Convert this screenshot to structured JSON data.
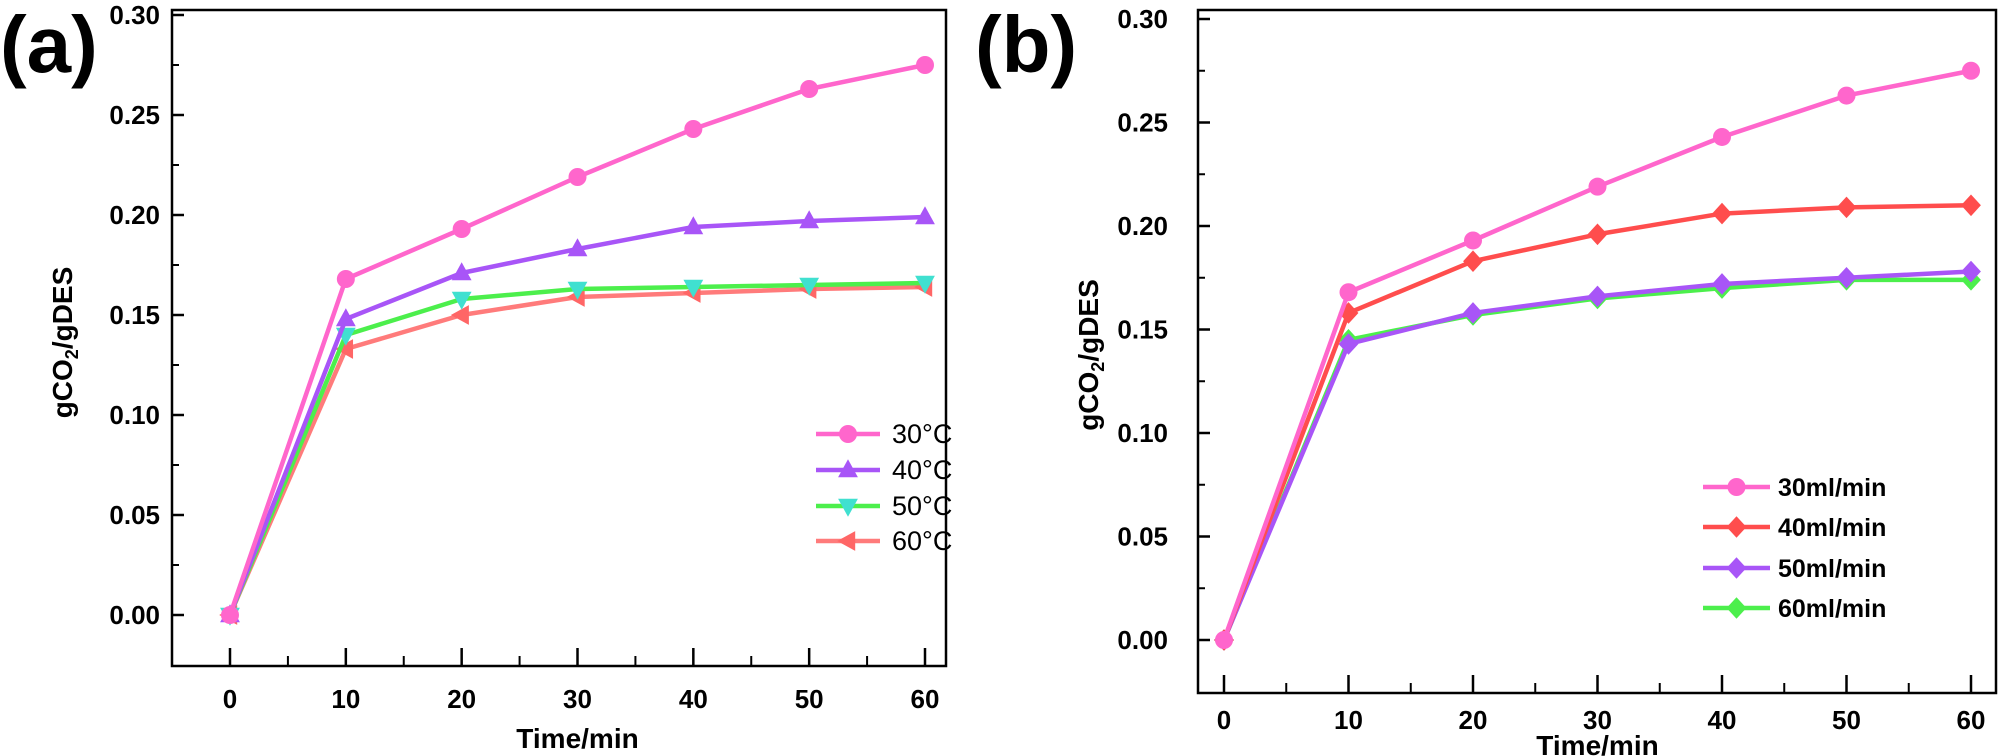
{
  "chart_data": [
    {
      "type": "line",
      "panel_label": "(a)",
      "xlabel": "Time/min",
      "ylabel": "gCO2/gDES",
      "xlim": [
        -5,
        65
      ],
      "ylim": [
        -0.03,
        0.3
      ],
      "xticks": [
        0,
        10,
        20,
        30,
        40,
        50,
        60
      ],
      "xtick_labels": [
        "0",
        "10",
        "20",
        "30",
        "40",
        "50",
        "60"
      ],
      "yticks": [
        0,
        0.05,
        0.1,
        0.15,
        0.2,
        0.25,
        0.3
      ],
      "ytick_labels": [
        "0.00",
        "0.05",
        "0.10",
        "0.15",
        "0.20",
        "0.25",
        "0.30"
      ],
      "grid": false,
      "legend_placement": "lower-right",
      "legend_bold": false,
      "x": [
        0,
        10,
        20,
        30,
        40,
        50,
        60
      ],
      "series": [
        {
          "name": "30°C",
          "color": "#ff66cc",
          "marker": "circle",
          "marker_color": "#ff66cc",
          "values": [
            0,
            0.168,
            0.193,
            0.219,
            0.243,
            0.263,
            0.275
          ]
        },
        {
          "name": "40°C",
          "color": "#a855f7",
          "marker": "triangle-up",
          "marker_color": "#a855f7",
          "values": [
            0,
            0.148,
            0.171,
            0.183,
            0.194,
            0.197,
            0.199
          ]
        },
        {
          "name": "50°C",
          "color": "#4cef4c",
          "marker": "triangle-down",
          "marker_color": "#40e0d0",
          "values": [
            0,
            0.14,
            0.158,
            0.163,
            0.164,
            0.165,
            0.166
          ]
        },
        {
          "name": "60°C",
          "color": "#ff7b7b",
          "marker": "triangle-left",
          "marker_color": "#ff6666",
          "values": [
            0,
            0.133,
            0.15,
            0.159,
            0.161,
            0.163,
            0.164
          ]
        }
      ]
    },
    {
      "type": "line",
      "panel_label": "(b)",
      "xlabel": "Time/min",
      "ylabel": "gCO2/gDES",
      "xlim": [
        -3,
        63
      ],
      "ylim": [
        -0.015,
        0.3
      ],
      "xticks": [
        0,
        10,
        20,
        30,
        40,
        50,
        60
      ],
      "xtick_labels": [
        "0",
        "10",
        "20",
        "30",
        "40",
        "50",
        "60"
      ],
      "yticks": [
        0,
        0.05,
        0.1,
        0.15,
        0.2,
        0.25,
        0.3
      ],
      "ytick_labels": [
        "0.00",
        "0.05",
        "0.10",
        "0.15",
        "0.20",
        "0.25",
        "0.30"
      ],
      "grid": false,
      "legend_placement": "lower-right",
      "legend_bold": true,
      "x": [
        0,
        10,
        20,
        30,
        40,
        50,
        60
      ],
      "series": [
        {
          "name": "30ml/min",
          "color": "#ff66cc",
          "marker": "circle",
          "marker_color": "#ff66cc",
          "values": [
            0,
            0.168,
            0.193,
            0.219,
            0.243,
            0.263,
            0.275
          ]
        },
        {
          "name": "40ml/min",
          "color": "#ff4d4d",
          "marker": "diamond",
          "marker_color": "#ff4d4d",
          "values": [
            0,
            0.158,
            0.183,
            0.196,
            0.206,
            0.209,
            0.21
          ]
        },
        {
          "name": "50ml/min",
          "color": "#a855f7",
          "marker": "diamond",
          "marker_color": "#a855f7",
          "values": [
            0,
            0.143,
            0.158,
            0.166,
            0.172,
            0.175,
            0.178
          ]
        },
        {
          "name": "60ml/min",
          "color": "#4cef4c",
          "marker": "diamond",
          "marker_color": "#4cef4c",
          "values": [
            0,
            0.145,
            0.157,
            0.165,
            0.17,
            0.174,
            0.174
          ]
        }
      ]
    }
  ]
}
